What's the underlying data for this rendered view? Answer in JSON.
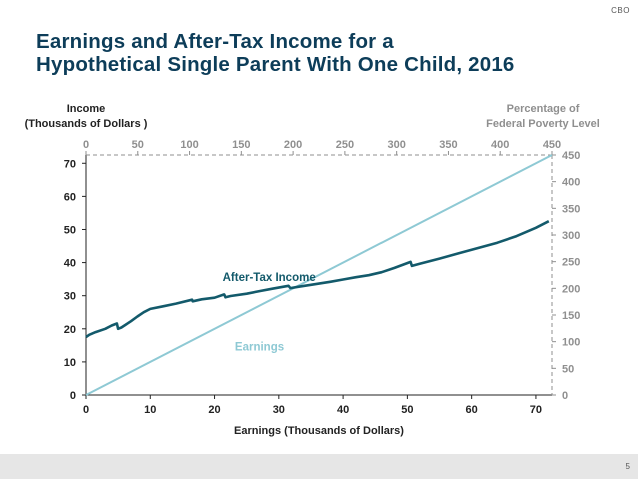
{
  "header": {
    "logo_text": "CBO"
  },
  "title_lines": [
    "Earnings and After-Tax Income for a",
    "Hypothetical Single Parent With One Child, 2016"
  ],
  "footer": {
    "page_number": "5"
  },
  "colors": {
    "title": "#0d3d59",
    "after_tax": "#135a6b",
    "earnings": "#8ec9d4",
    "right_axis": "#8f8f8f",
    "axis": "#222222"
  },
  "chart_data": {
    "type": "line",
    "title": "Earnings and After-Tax Income for a Hypothetical Single Parent With One Child, 2016",
    "xlabel": "Earnings (Thousands of Dollars)",
    "ylabel_lines": [
      "Income",
      "(Thousands of Dollars )"
    ],
    "y2label_lines": [
      "Percentage of",
      "Federal Poverty Level"
    ],
    "xlim": [
      0,
      72.5
    ],
    "ylim": [
      0,
      72.5
    ],
    "x_ticks": [
      0,
      10,
      20,
      30,
      40,
      50,
      60,
      70
    ],
    "y_ticks": [
      0,
      10,
      20,
      30,
      40,
      50,
      60,
      70
    ],
    "top_axis": {
      "label": "Percentage of Federal Poverty Level",
      "ticks": [
        0,
        50,
        100,
        150,
        200,
        250,
        300,
        350,
        400,
        450
      ],
      "range": [
        0,
        450
      ]
    },
    "right_axis": {
      "label": "Percentage of Federal Poverty Level",
      "ticks": [
        0,
        50,
        100,
        150,
        200,
        250,
        300,
        350,
        400,
        450
      ],
      "range": [
        0,
        450
      ]
    },
    "grid": false,
    "series": [
      {
        "name": "After-Tax Income",
        "label": "After-Tax Income",
        "x": [
          0,
          0.5,
          1.5,
          3,
          4,
          4.8,
          5,
          5.5,
          7,
          8,
          9,
          10,
          12,
          14,
          16.5,
          16.6,
          18,
          20,
          21.5,
          21.7,
          22.5,
          25,
          27,
          29,
          31.5,
          31.8,
          33,
          35,
          38,
          40,
          42,
          44,
          46,
          48,
          50.5,
          50.7,
          52,
          55,
          58,
          61,
          64,
          67,
          70,
          72
        ],
        "values": [
          17.5,
          18.2,
          19,
          20,
          21,
          21.6,
          20,
          20.4,
          22.3,
          23.7,
          25,
          26,
          26.8,
          27.6,
          28.8,
          28.3,
          28.9,
          29.4,
          30.4,
          29.5,
          29.9,
          30.6,
          31.4,
          32.1,
          33,
          32.3,
          32.7,
          33.3,
          34.2,
          34.9,
          35.6,
          36.2,
          37.1,
          38.4,
          40.2,
          39,
          39.7,
          41.2,
          42.8,
          44.4,
          46,
          48,
          50.5,
          52.5
        ]
      },
      {
        "name": "Earnings",
        "label": "Earnings",
        "x": [
          0,
          72.5
        ],
        "values": [
          0,
          72.5
        ]
      }
    ]
  }
}
